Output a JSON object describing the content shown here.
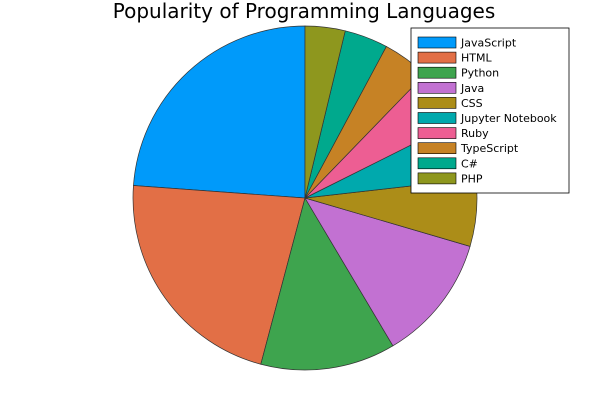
{
  "chart_data": {
    "type": "pie",
    "title": "Popularity of Programming Languages",
    "legend_position": "top-right",
    "categories": [
      "JavaScript",
      "HTML",
      "Python",
      "Java",
      "CSS",
      "Jupyter Notebook",
      "Ruby",
      "TypeScript",
      "C#",
      "PHP"
    ],
    "values": [
      22.2,
      20.5,
      11.8,
      11.1,
      5.9,
      5.2,
      5.0,
      4.1,
      3.8,
      3.5
    ],
    "colors": [
      "#009AFA",
      "#E26F46",
      "#3EA44E",
      "#C271D2",
      "#AC8D18",
      "#00A9AD",
      "#ED5E93",
      "#C68225",
      "#00A98D",
      "#8E971E"
    ]
  }
}
